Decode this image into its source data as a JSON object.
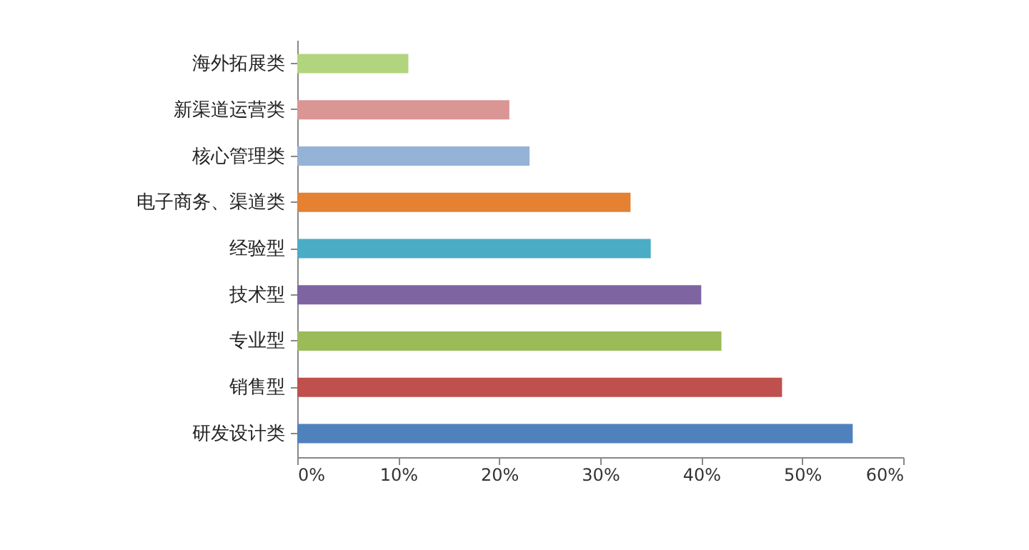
{
  "chart_data": {
    "type": "bar",
    "orientation": "horizontal",
    "categories": [
      "海外拓展类",
      "新渠道运营类",
      "核心管理类",
      "电子商务、渠道类",
      "经验型",
      "技术型",
      "专业型",
      "销售型",
      "研发设计类"
    ],
    "values": [
      11,
      21,
      23,
      33,
      35,
      40,
      42,
      48,
      55
    ],
    "colors": [
      "#b3d47f",
      "#d99694",
      "#95b3d7",
      "#e48132",
      "#4bacc6",
      "#7f64a2",
      "#9bbb59",
      "#c0504d",
      "#4f81bd"
    ],
    "xlim": [
      0,
      60
    ],
    "xticks": [
      {
        "value": 0,
        "label": "0%"
      },
      {
        "value": 10,
        "label": "10%"
      },
      {
        "value": 20,
        "label": "20%"
      },
      {
        "value": 30,
        "label": "30%"
      },
      {
        "value": 40,
        "label": "40%"
      },
      {
        "value": 50,
        "label": "50%"
      },
      {
        "value": 60,
        "label": "60%"
      }
    ],
    "grid": false,
    "legend": false
  }
}
